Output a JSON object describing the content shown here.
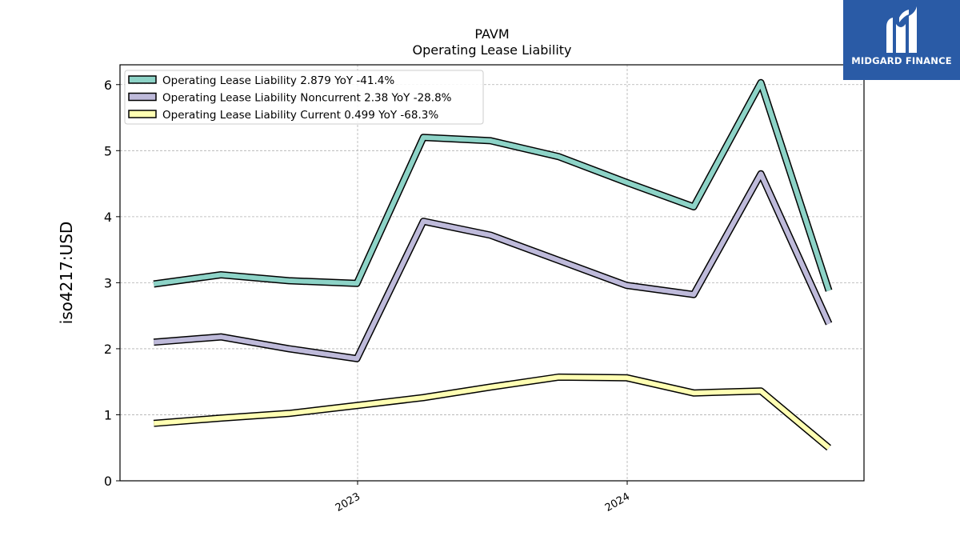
{
  "chart_data": {
    "type": "line",
    "title": "PAVM",
    "subtitle": "Operating Lease Liability",
    "ylabel": "iso4217:USD",
    "xlabel": "",
    "ylim": [
      0,
      6.3
    ],
    "yticks": [
      "0",
      "1",
      "2",
      "3",
      "4",
      "5",
      "6"
    ],
    "xticks": [
      {
        "label": "2023",
        "date": "2023-01-01"
      },
      {
        "label": "2024",
        "date": "2024-01-01"
      }
    ],
    "x": [
      "2022-03-31",
      "2022-06-30",
      "2022-09-30",
      "2022-12-31",
      "2023-03-31",
      "2023-06-30",
      "2023-09-30",
      "2023-12-31",
      "2024-03-31",
      "2024-06-30",
      "2024-09-30"
    ],
    "grid": true,
    "legend_position": "top-left",
    "series": [
      {
        "name": "Operating Lease Liability",
        "legend": "Operating Lease Liability  2.879 YoY -41.4%",
        "color": "#8dd3c7",
        "values": [
          2.98,
          3.12,
          3.03,
          2.99,
          5.2,
          5.15,
          4.91,
          4.52,
          4.15,
          6.03,
          2.88
        ]
      },
      {
        "name": "Operating Lease Liability Noncurrent",
        "legend": "Operating Lease Liability Noncurrent  2.38 YoY -28.8%",
        "color": "#bebada",
        "values": [
          2.1,
          2.18,
          2.0,
          1.85,
          3.93,
          3.72,
          3.34,
          2.96,
          2.82,
          4.65,
          2.38
        ]
      },
      {
        "name": "Operating Lease Liability Current",
        "legend": "Operating Lease Liability Current  0.499 YoY -68.3%",
        "color": "#ffffb3",
        "values": [
          0.87,
          0.95,
          1.02,
          1.14,
          1.26,
          1.42,
          1.57,
          1.56,
          1.33,
          1.36,
          0.5
        ]
      }
    ]
  },
  "logo": {
    "text": "MIDGARD FINANCE",
    "background": "#2a5ba6"
  }
}
